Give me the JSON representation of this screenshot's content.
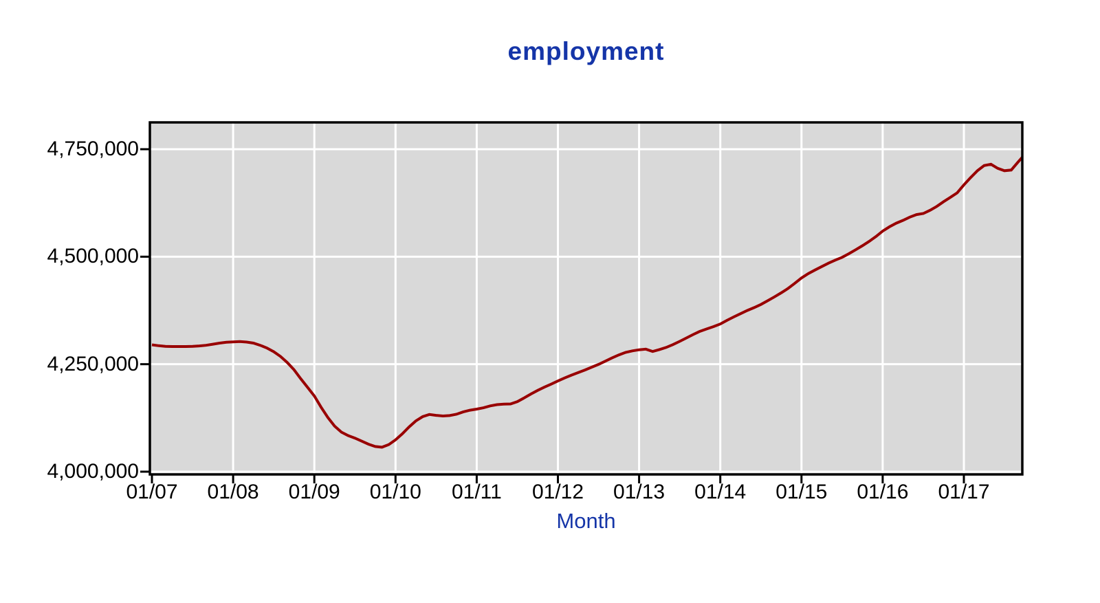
{
  "colors": {
    "line": "#990000",
    "title_text": "#1535a8",
    "axis_text": "#000000",
    "plot_background": "#d9d9d9",
    "gridline": "#ffffff",
    "border": "#000000",
    "page_background": "#ffffff"
  },
  "chart_data": {
    "type": "line",
    "title": "employment",
    "xlabel": "Month",
    "ylabel": "",
    "x_start": "2007-01",
    "x_end": "2017-10",
    "x_tick_labels": [
      "01/07",
      "01/08",
      "01/09",
      "01/10",
      "01/11",
      "01/12",
      "01/13",
      "01/14",
      "01/15",
      "01/16",
      "01/17"
    ],
    "y_tick_labels": [
      "4,750,000",
      "4,500,000",
      "4,250,000",
      "4,000,000"
    ],
    "y_tick_values": [
      4750000,
      4500000,
      4250000,
      4000000
    ],
    "ylim": [
      3993600,
      4812400
    ],
    "grid": true,
    "legend": "none",
    "series": [
      {
        "name": "employment",
        "color": "#990000",
        "values": [
          4295000,
          4293000,
          4291500,
          4291000,
          4291000,
          4291000,
          4291500,
          4292500,
          4294000,
          4296500,
          4299000,
          4301000,
          4302000,
          4302500,
          4301500,
          4299000,
          4294000,
          4287500,
          4279000,
          4268000,
          4254000,
          4237000,
          4216000,
          4196000,
          4176000,
          4150000,
          4126000,
          4106000,
          4092000,
          4084000,
          4078000,
          4071000,
          4064000,
          4058500,
          4057000,
          4063000,
          4074000,
          4088000,
          4104000,
          4118000,
          4128000,
          4133000,
          4131000,
          4129500,
          4130500,
          4133500,
          4139000,
          4143000,
          4145500,
          4148500,
          4153000,
          4156000,
          4157000,
          4157500,
          4163000,
          4171500,
          4180500,
          4189000,
          4196500,
          4203500,
          4211000,
          4218000,
          4224500,
          4230500,
          4236500,
          4243000,
          4249500,
          4257000,
          4264500,
          4271500,
          4277500,
          4281000,
          4283500,
          4285000,
          4279500,
          4284000,
          4289000,
          4295500,
          4303000,
          4311000,
          4319000,
          4326500,
          4332000,
          4337500,
          4343500,
          4352000,
          4360000,
          4367500,
          4375000,
          4381500,
          4389000,
          4397500,
          4406500,
          4416000,
          4426000,
          4438000,
          4450500,
          4460500,
          4469000,
          4477000,
          4485000,
          4492000,
          4498500,
          4507000,
          4516000,
          4525500,
          4535500,
          4547000,
          4559500,
          4569500,
          4578000,
          4584500,
          4592000,
          4598000,
          4600500,
          4608000,
          4617000,
          4628000,
          4638000,
          4648500,
          4667000,
          4684000,
          4700000,
          4712000,
          4715000,
          4705500,
          4700000,
          4701500,
          4720000,
          4738000
        ]
      }
    ]
  }
}
